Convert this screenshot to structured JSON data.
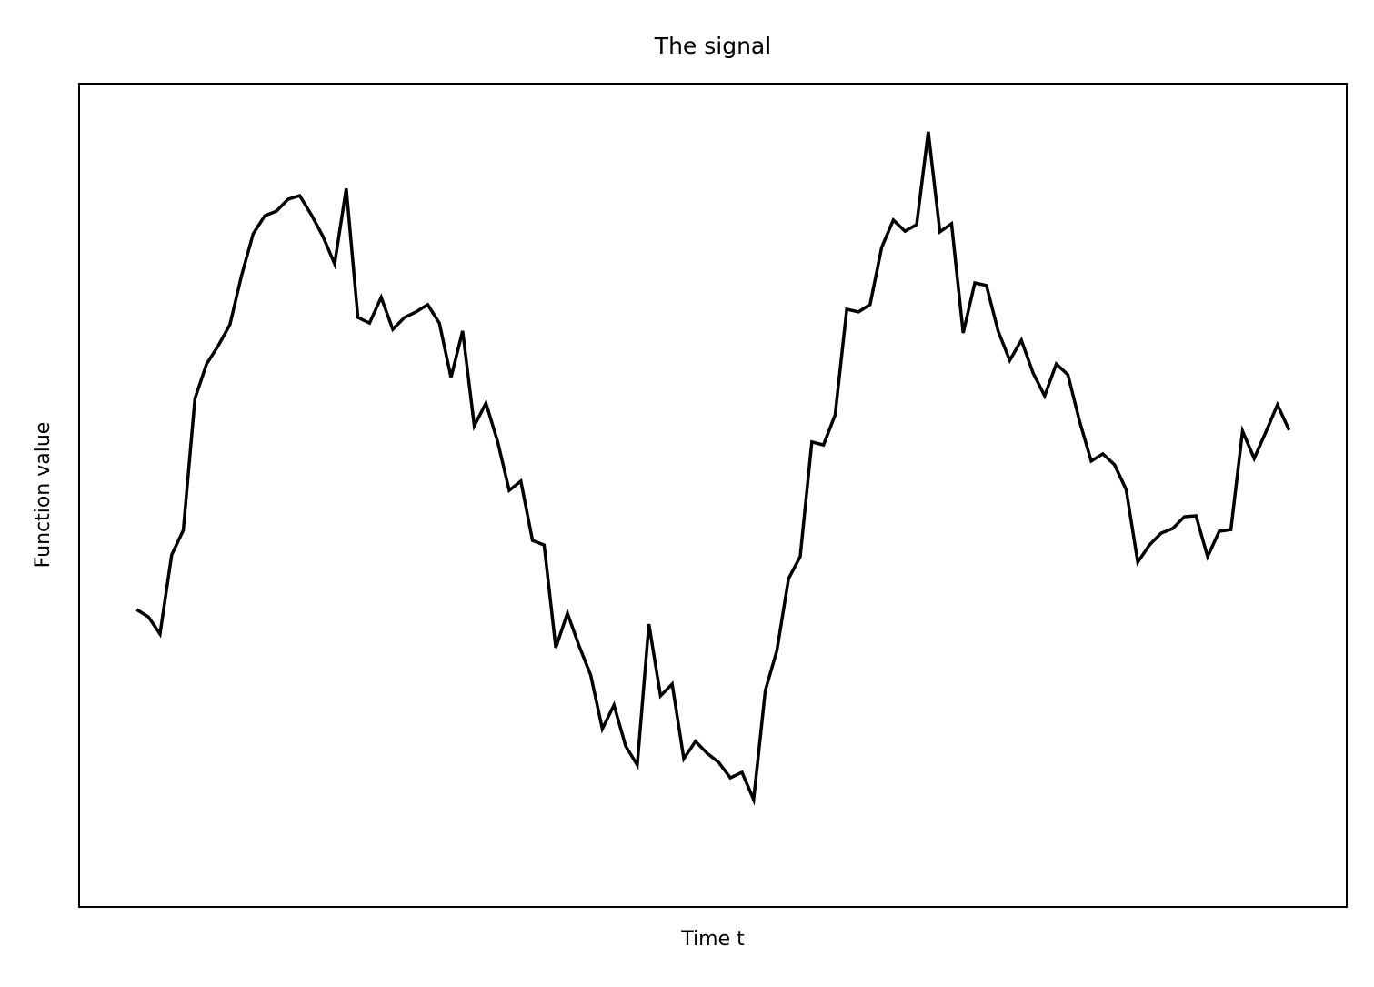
{
  "chart_data": {
    "type": "line",
    "title": "The signal",
    "x_label": "Time t",
    "y_label": "Function value",
    "x": [
      0,
      1,
      2,
      3,
      4,
      5,
      6,
      7,
      8,
      9,
      10,
      11,
      12,
      13,
      14,
      15,
      16,
      17,
      18,
      19,
      20,
      21,
      22,
      23,
      24,
      25,
      26,
      27,
      28,
      29,
      30,
      31,
      32,
      33,
      34,
      35,
      36,
      37,
      38,
      39,
      40,
      41,
      42,
      43,
      44,
      45,
      46,
      47,
      48,
      49,
      50,
      51,
      52,
      53,
      54,
      55,
      56,
      57,
      58,
      59,
      60,
      61,
      62,
      63,
      64,
      65,
      66,
      67,
      68,
      69,
      70,
      71,
      72,
      73,
      74,
      75,
      76,
      77,
      78,
      79,
      80,
      81,
      82,
      83,
      84,
      85,
      86,
      87,
      88,
      89,
      90,
      91,
      92,
      93,
      94,
      95,
      96,
      97,
      98,
      99
    ],
    "series": [
      {
        "color": "#000000",
        "values": [
          -0.347,
          -0.369,
          -0.421,
          -0.181,
          -0.106,
          0.294,
          0.399,
          0.454,
          0.518,
          0.667,
          0.794,
          0.849,
          0.863,
          0.899,
          0.91,
          0.852,
          0.786,
          0.703,
          0.932,
          0.54,
          0.523,
          0.601,
          0.504,
          0.54,
          0.557,
          0.579,
          0.523,
          0.358,
          0.499,
          0.211,
          0.28,
          0.164,
          0.015,
          0.043,
          -0.137,
          -0.151,
          -0.463,
          -0.358,
          -0.457,
          -0.546,
          -0.709,
          -0.637,
          -0.761,
          -0.819,
          -0.391,
          -0.609,
          -0.573,
          -0.8,
          -0.747,
          -0.783,
          -0.811,
          -0.858,
          -0.841,
          -0.924,
          -0.593,
          -0.471,
          -0.253,
          -0.186,
          0.162,
          0.153,
          0.244,
          0.565,
          0.557,
          0.579,
          0.753,
          0.836,
          0.802,
          0.822,
          1.104,
          0.8,
          0.825,
          0.493,
          0.645,
          0.637,
          0.499,
          0.41,
          0.471,
          0.372,
          0.302,
          0.399,
          0.366,
          0.225,
          0.104,
          0.126,
          0.093,
          0.018,
          -0.203,
          -0.151,
          -0.115,
          -0.101,
          -0.065,
          -0.062,
          -0.186,
          -0.109,
          -0.104,
          0.195,
          0.112,
          0.192,
          0.275,
          0.198
        ]
      }
    ],
    "xlim": [
      -4.95,
      103.95
    ],
    "ylim": [
      -1.25,
      1.25
    ],
    "grid": false
  }
}
